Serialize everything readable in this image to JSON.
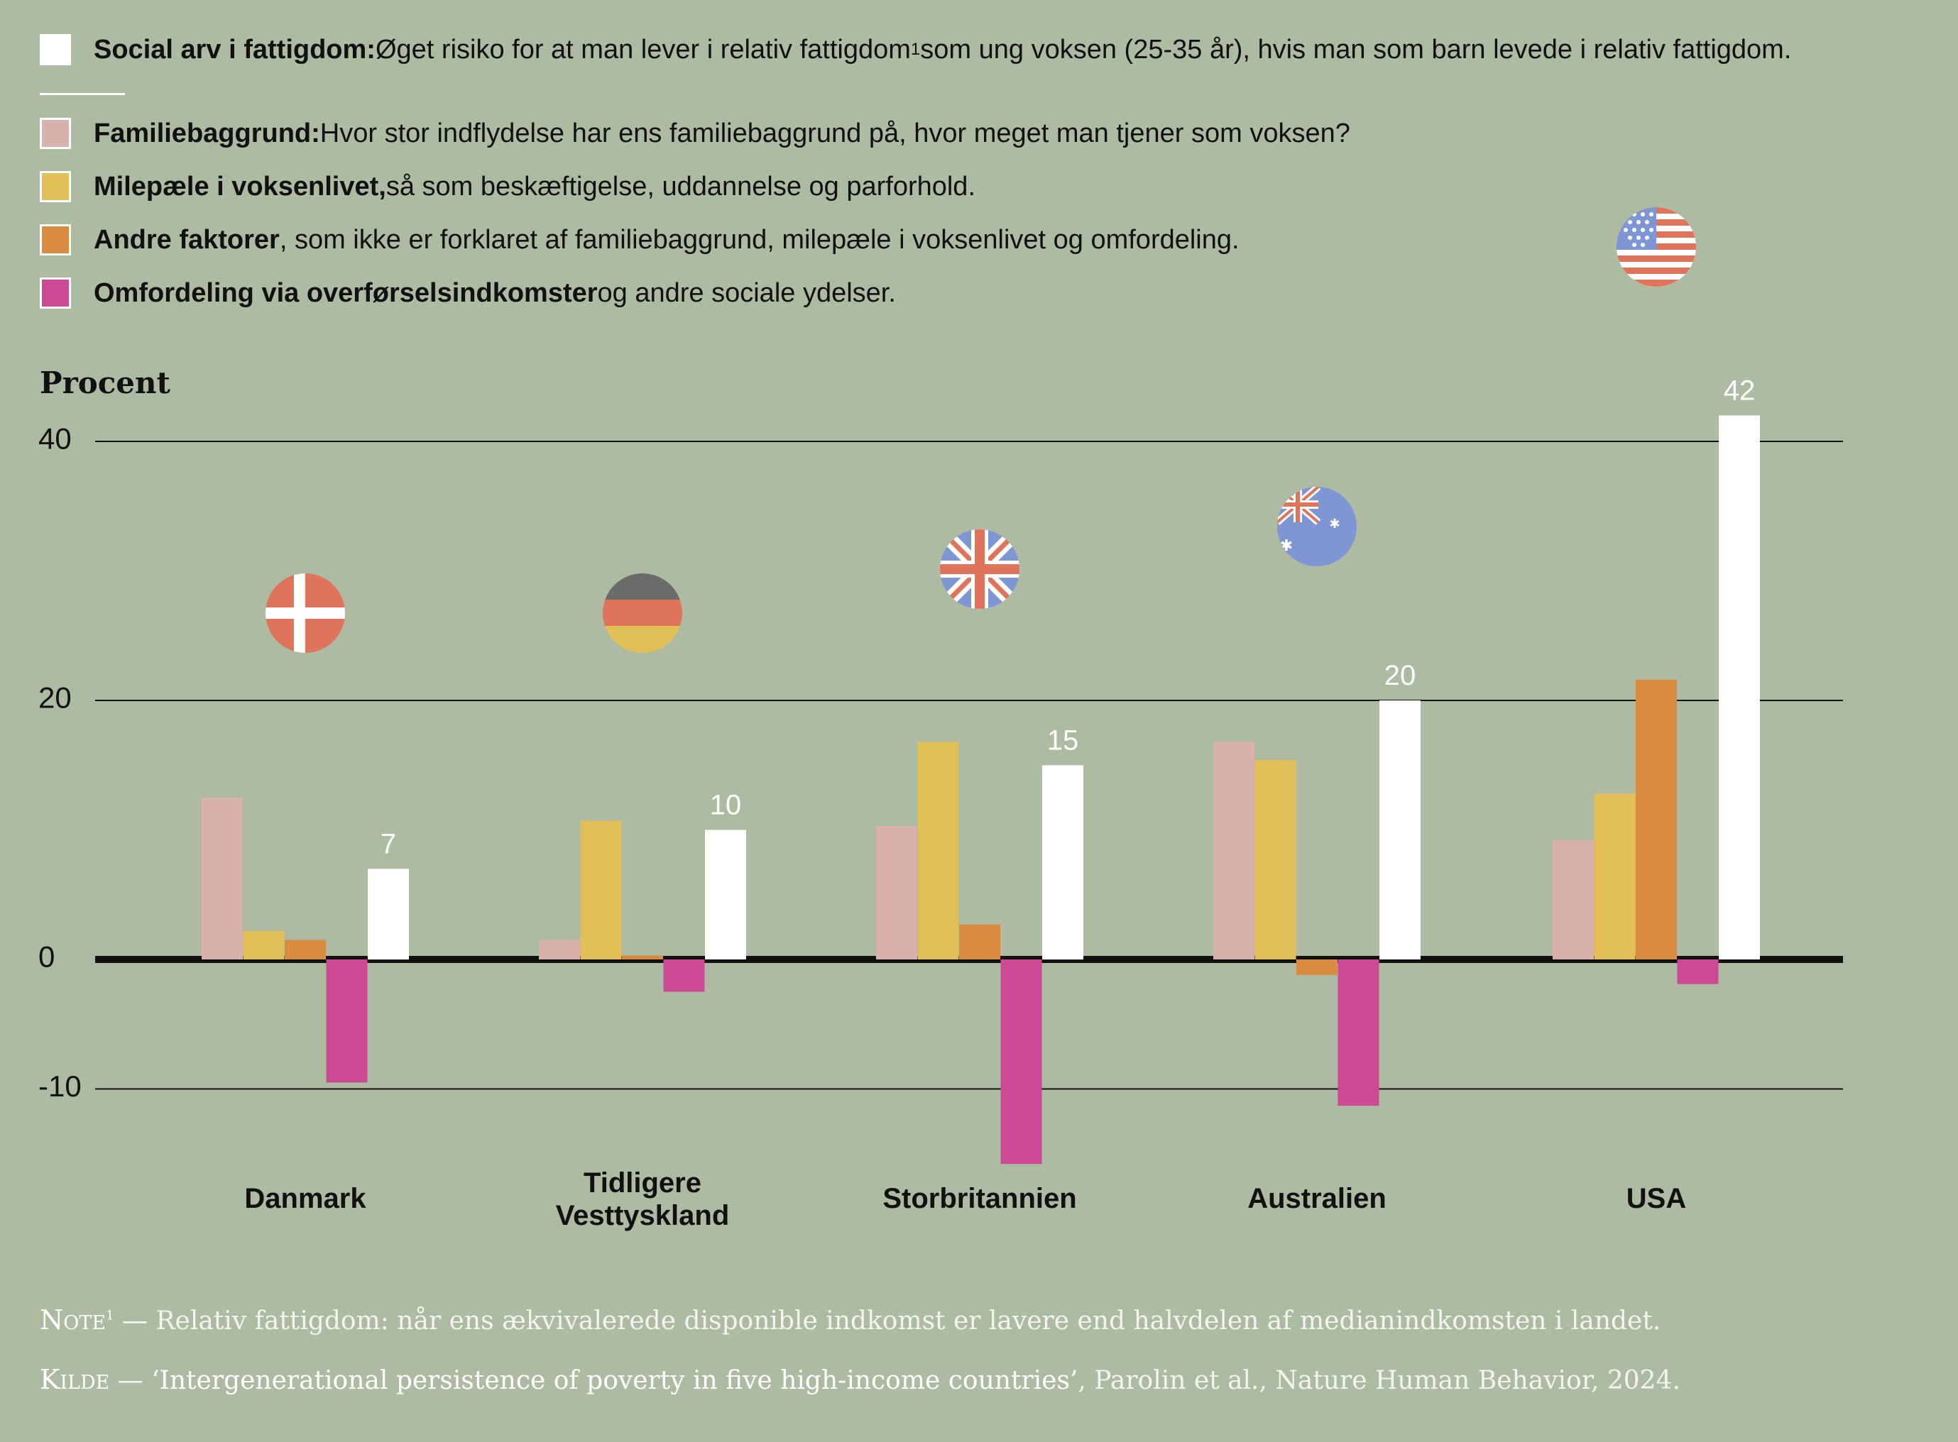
{
  "legend": {
    "items": [
      {
        "bold": "Social arv i fattigdom:",
        "text": " Øget risiko for at man lever i relativ fattigdom",
        "sup": "1",
        "text2": " som ung voksen (25-35 år), hvis man som barn levede i relativ fattigdom.",
        "color": "#ffffff"
      },
      {
        "bold": "Familiebaggrund:",
        "text": " Hvor stor indflydelse har ens familiebaggrund på, hvor meget man tjener som voksen?",
        "color": "#d9b0ab"
      },
      {
        "bold": "Milepæle i voksenlivet,",
        "text": " så som beskæftigelse, uddannelse og parforhold.",
        "color": "#e3bf57"
      },
      {
        "bold": "Andre faktorer",
        "text": ", som ikke er forklaret af familiebaggrund, milepæle i voksenlivet og omfordeling.",
        "color": "#d98c40"
      },
      {
        "bold": "Omfordeling via overførselsindkomster",
        "text": " og andre sociale ydelser.",
        "color": "#cc4a93"
      }
    ]
  },
  "chart_data": {
    "type": "bar",
    "ylabel": "Procent",
    "yticks": [
      40,
      20,
      0,
      -10
    ],
    "ylim": [
      -16,
      44
    ],
    "categories": [
      "Danmark",
      "Tidligere Vesttyskland",
      "Storbritannien",
      "Australien",
      "USA"
    ],
    "category_lines": [
      [
        "Danmark"
      ],
      [
        "Tidligere",
        "Vesttyskland"
      ],
      [
        "Storbritannien"
      ],
      [
        "Australien"
      ],
      [
        "USA"
      ]
    ],
    "flags": [
      "denmark-flag-icon",
      "germany-flag-icon",
      "uk-flag-icon",
      "australia-flag-icon",
      "usa-flag-icon"
    ],
    "series": [
      {
        "name": "Familiebaggrund",
        "color": "#d9b0ab",
        "values": [
          12.5,
          1.5,
          10.3,
          16.8,
          9.2
        ]
      },
      {
        "name": "Milepæle i voksenlivet",
        "color": "#e3bf57",
        "values": [
          2.2,
          10.7,
          16.8,
          15.4,
          12.8
        ]
      },
      {
        "name": "Andre faktorer",
        "color": "#d98c40",
        "values": [
          1.5,
          0.3,
          2.7,
          -1.2,
          21.6
        ]
      },
      {
        "name": "Omfordeling via overførselsindkomster",
        "color": "#cc4a93",
        "values": [
          -9.5,
          -2.5,
          -15.8,
          -11.3,
          -1.9
        ]
      },
      {
        "name": "Social arv i fattigdom",
        "color": "#ffffff",
        "values": [
          7,
          10,
          15,
          20,
          42
        ]
      }
    ],
    "data_labels": [
      "7",
      "10",
      "15",
      "20",
      "42"
    ],
    "grid": true
  },
  "footer": {
    "note_key": "Note",
    "note_sup": "1",
    "note_sep": " — ",
    "note_text": "Relativ fattigdom: når ens ækvivalerede disponible indkomst er lavere end halvdelen af medianindkomsten i landet.",
    "source_key": "Kilde",
    "source_sep": " — ",
    "source_title": "‘Intergenerational persistence of poverty in five high-income countries’",
    "source_rest": ", Parolin et al., Nature Human Behavior, 2024."
  }
}
